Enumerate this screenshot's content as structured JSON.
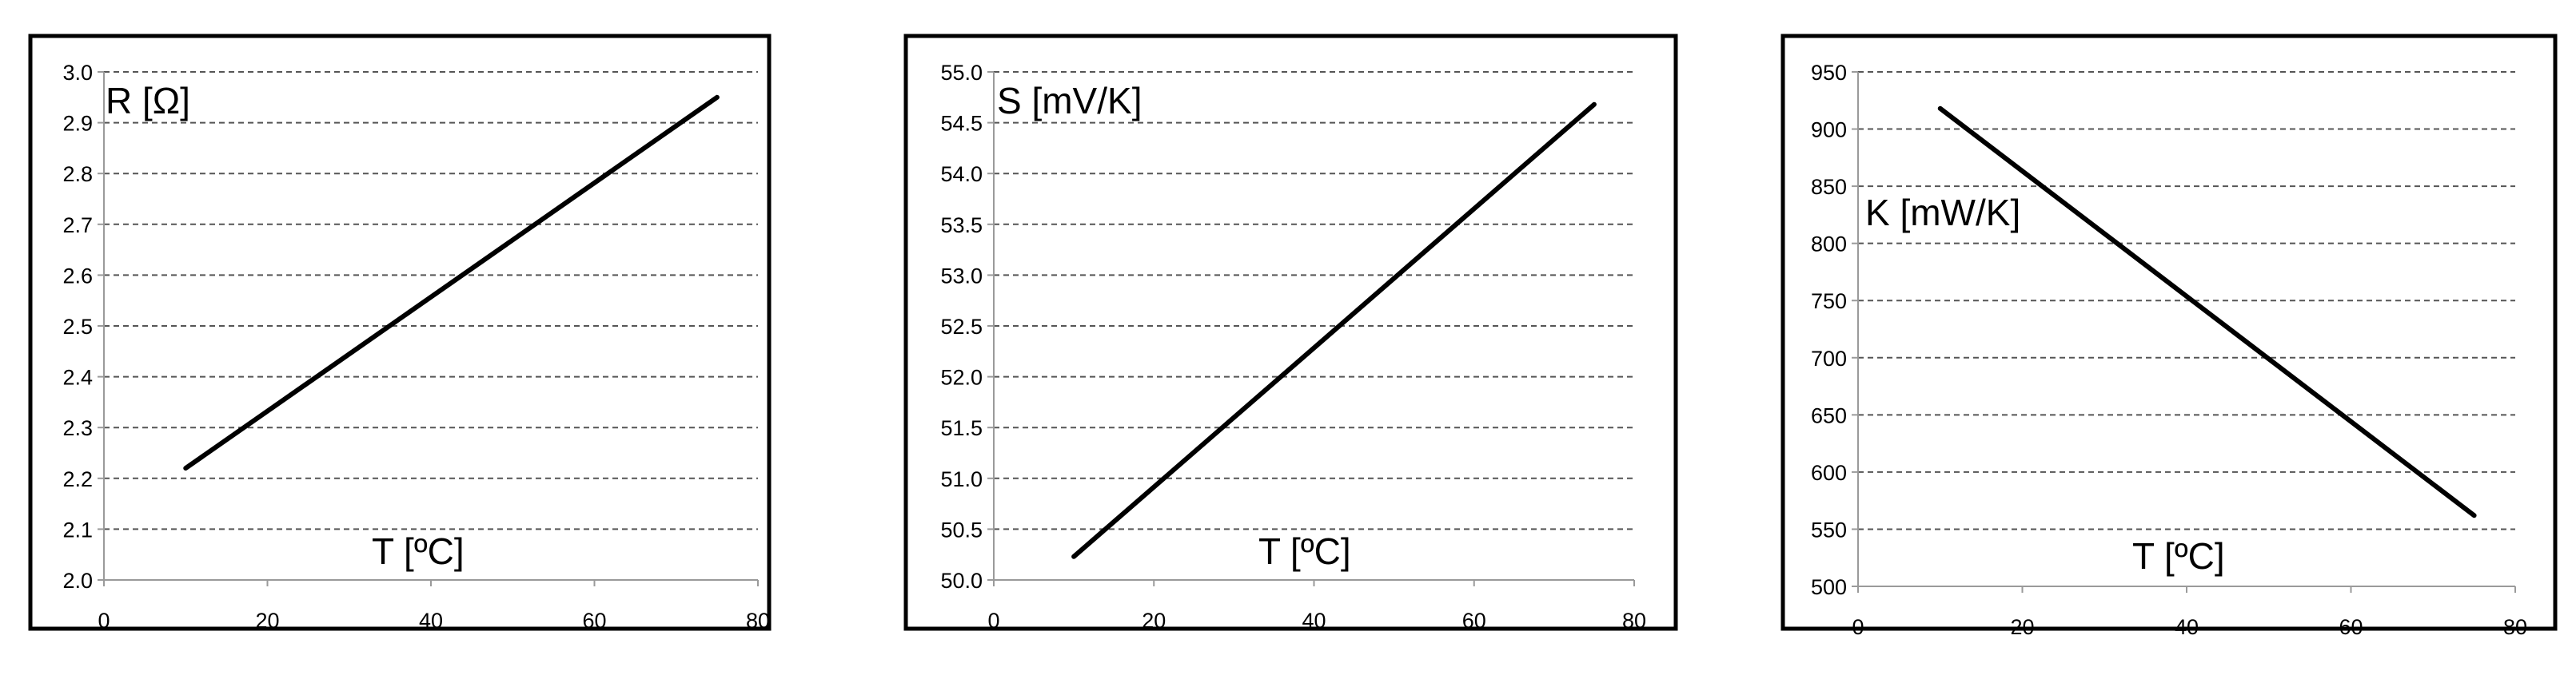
{
  "chart_data": [
    {
      "type": "line",
      "ylabel": "R [Ω]",
      "xlabel": "T [ºC]",
      "xlim": [
        0,
        80
      ],
      "ylim": [
        2.0,
        3.0
      ],
      "x_ticks": [
        "0",
        "20",
        "40",
        "60",
        "80"
      ],
      "y_ticks": [
        "2.0",
        "2.1",
        "2.2",
        "2.3",
        "2.4",
        "2.5",
        "2.6",
        "2.7",
        "2.8",
        "2.9",
        "3.0"
      ],
      "grid": true,
      "series": [
        {
          "x": [
            10,
            75
          ],
          "y": [
            2.22,
            2.95
          ]
        }
      ]
    },
    {
      "type": "line",
      "ylabel": "S [mV/K]",
      "xlabel": "T [ºC]",
      "xlim": [
        0,
        80
      ],
      "ylim": [
        50.0,
        55.0
      ],
      "x_ticks": [
        "0",
        "20",
        "40",
        "60",
        "80"
      ],
      "y_ticks": [
        "50.0",
        "50.5",
        "51.0",
        "51.5",
        "52.0",
        "52.5",
        "53.0",
        "53.5",
        "54.0",
        "54.5",
        "55.0"
      ],
      "grid": true,
      "series": [
        {
          "x": [
            10,
            75
          ],
          "y": [
            50.23,
            54.68
          ]
        }
      ]
    },
    {
      "type": "line",
      "ylabel": "K [mW/K]",
      "xlabel": "T [ºC]",
      "xlim": [
        0,
        80
      ],
      "ylim": [
        500,
        950
      ],
      "x_ticks": [
        "0",
        "20",
        "40",
        "60",
        "80"
      ],
      "y_ticks": [
        "500",
        "550",
        "600",
        "650",
        "700",
        "750",
        "800",
        "850",
        "900",
        "950"
      ],
      "grid": true,
      "series": [
        {
          "x": [
            10,
            75
          ],
          "y": [
            918,
            562
          ]
        }
      ]
    }
  ]
}
